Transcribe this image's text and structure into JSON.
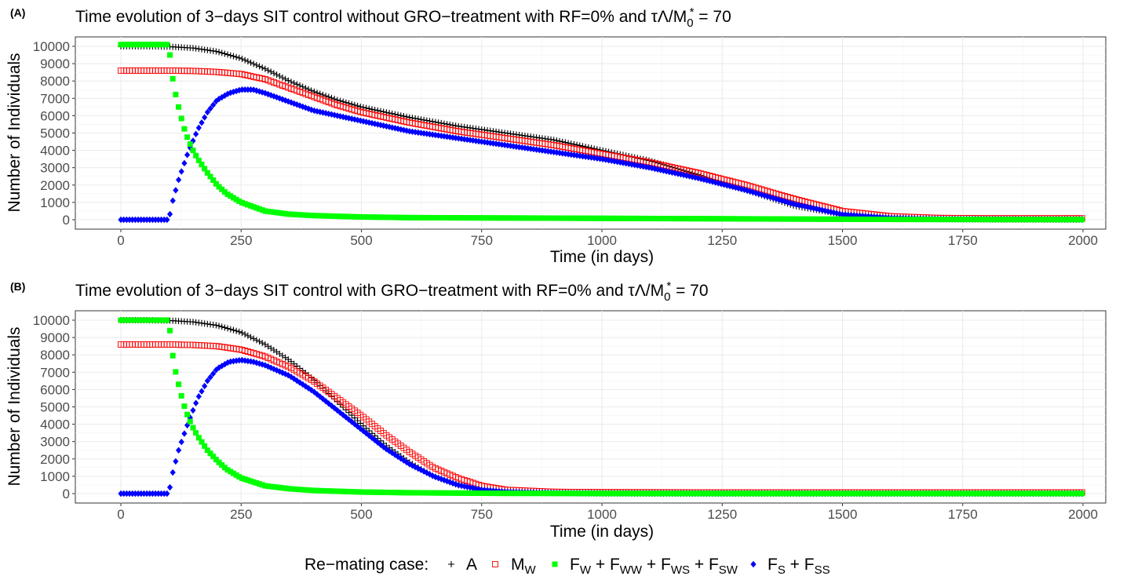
{
  "legend": {
    "title": "Re−mating case:",
    "items": [
      {
        "label": "A",
        "marker": "plus",
        "color": "#000000"
      },
      {
        "label": "M",
        "sub": "W",
        "marker": "open-square",
        "color": "#FF0000"
      },
      {
        "label_parts": [
          [
            "F",
            "W"
          ],
          [
            "F",
            "WW"
          ],
          [
            "F",
            "WS"
          ],
          [
            "F",
            "SW"
          ]
        ],
        "marker": "filled-square",
        "color": "#00FF00"
      },
      {
        "label_parts": [
          [
            "F",
            "S"
          ],
          [
            "F",
            "SS"
          ]
        ],
        "marker": "diamond",
        "color": "#0000FF"
      }
    ]
  },
  "panels": [
    {
      "tag": "(A)",
      "title_text": "Time evolution of 3−days SIT control without GRO−treatment with RF=0% and ",
      "title_math": "τΛ/M",
      "title_math_sub": "0",
      "title_math_sup": "*",
      "title_math_tail": " = 70"
    },
    {
      "tag": "(B)",
      "title_text": "Time evolution of 3−days SIT control with GRO−treatment with RF=0% and ",
      "title_math": "τΛ/M",
      "title_math_sub": "0",
      "title_math_sup": "*",
      "title_math_tail": " = 70"
    }
  ],
  "chart_data": [
    {
      "type": "scatter",
      "xlabel": "Time (in days)",
      "ylabel": "Number of Individuals",
      "xlim": [
        0,
        2000
      ],
      "ylim": [
        0,
        10000
      ],
      "x_ticks": [
        0,
        250,
        500,
        750,
        1000,
        1250,
        1500,
        1750,
        2000
      ],
      "y_ticks": [
        0,
        1000,
        2000,
        3000,
        4000,
        5000,
        6000,
        7000,
        8000,
        9000,
        10000
      ],
      "grid": true,
      "series": [
        {
          "name": "A",
          "color": "#000000",
          "marker": "plus",
          "x": [
            0,
            50,
            100,
            150,
            200,
            250,
            300,
            350,
            400,
            450,
            500,
            600,
            700,
            800,
            900,
            1000,
            1100,
            1200,
            1300,
            1400,
            1500,
            1600,
            1700,
            1800,
            2000
          ],
          "y": [
            10000,
            10000,
            9980,
            9900,
            9700,
            9300,
            8700,
            8000,
            7400,
            6900,
            6500,
            5900,
            5400,
            5000,
            4600,
            4000,
            3400,
            2600,
            1700,
            800,
            300,
            100,
            40,
            20,
            10
          ]
        },
        {
          "name": "M_W",
          "color": "#FF0000",
          "marker": "open-square",
          "x": [
            0,
            50,
            100,
            150,
            200,
            250,
            300,
            350,
            400,
            450,
            500,
            600,
            700,
            800,
            900,
            1000,
            1100,
            1200,
            1300,
            1400,
            1500,
            1600,
            1700,
            1800,
            2000
          ],
          "y": [
            8600,
            8600,
            8600,
            8580,
            8520,
            8400,
            8100,
            7600,
            7100,
            6600,
            6200,
            5600,
            5100,
            4700,
            4300,
            3800,
            3300,
            2700,
            2000,
            1200,
            500,
            200,
            100,
            80,
            80
          ]
        },
        {
          "name": "F_W+F_WW+F_WS+F_SW",
          "color": "#00FF00",
          "marker": "filled-square",
          "x": [
            0,
            50,
            100,
            103,
            110,
            120,
            130,
            140,
            150,
            160,
            180,
            200,
            220,
            250,
            300,
            350,
            400,
            500,
            600,
            800,
            1000,
            1200,
            1400,
            1600,
            2000
          ],
          "y": [
            10100,
            10100,
            10100,
            9200,
            7700,
            6500,
            5400,
            4600,
            4000,
            3500,
            2700,
            2000,
            1500,
            1000,
            500,
            320,
            240,
            160,
            120,
            100,
            80,
            60,
            40,
            20,
            10
          ]
        },
        {
          "name": "F_S+F_SS",
          "color": "#0000FF",
          "marker": "diamond",
          "x": [
            0,
            50,
            100,
            105,
            120,
            140,
            160,
            180,
            200,
            225,
            250,
            275,
            300,
            350,
            400,
            500,
            600,
            700,
            800,
            900,
            1000,
            1100,
            1200,
            1300,
            1400,
            1500,
            1600,
            1700,
            2000
          ],
          "y": [
            0,
            0,
            0,
            800,
            2300,
            3900,
            5200,
            6200,
            6900,
            7300,
            7500,
            7500,
            7300,
            6800,
            6300,
            5700,
            5100,
            4700,
            4300,
            3900,
            3500,
            3000,
            2400,
            1700,
            900,
            300,
            100,
            40,
            20
          ]
        }
      ]
    },
    {
      "type": "scatter",
      "xlabel": "Time (in days)",
      "ylabel": "Number of Individuals",
      "xlim": [
        0,
        2000
      ],
      "ylim": [
        0,
        10000
      ],
      "x_ticks": [
        0,
        250,
        500,
        750,
        1000,
        1250,
        1500,
        1750,
        2000
      ],
      "y_ticks": [
        0,
        1000,
        2000,
        3000,
        4000,
        5000,
        6000,
        7000,
        8000,
        9000,
        10000
      ],
      "grid": true,
      "series": [
        {
          "name": "A",
          "color": "#000000",
          "marker": "plus",
          "x": [
            0,
            50,
            100,
            150,
            200,
            250,
            300,
            350,
            400,
            450,
            500,
            550,
            600,
            650,
            700,
            750,
            800,
            900,
            1000,
            1200,
            1500,
            2000
          ],
          "y": [
            10000,
            10000,
            9980,
            9900,
            9700,
            9300,
            8600,
            7700,
            6600,
            5300,
            4000,
            2800,
            1800,
            1000,
            500,
            200,
            80,
            30,
            10,
            5,
            5,
            5
          ]
        },
        {
          "name": "M_W",
          "color": "#FF0000",
          "marker": "open-square",
          "x": [
            0,
            50,
            100,
            150,
            200,
            250,
            300,
            350,
            400,
            450,
            500,
            550,
            600,
            650,
            700,
            750,
            800,
            900,
            1000,
            1200,
            1500,
            2000
          ],
          "y": [
            8600,
            8600,
            8600,
            8570,
            8500,
            8300,
            7900,
            7300,
            6500,
            5500,
            4500,
            3400,
            2400,
            1500,
            900,
            450,
            220,
            100,
            80,
            70,
            70,
            70
          ]
        },
        {
          "name": "F_W+F_WW+F_WS+F_SW",
          "color": "#00FF00",
          "marker": "filled-square",
          "x": [
            0,
            50,
            100,
            103,
            110,
            120,
            130,
            140,
            150,
            160,
            180,
            200,
            220,
            250,
            300,
            350,
            400,
            500,
            600,
            700,
            800,
            1000,
            1500,
            2000
          ],
          "y": [
            10000,
            10000,
            10000,
            9100,
            7500,
            6300,
            5200,
            4400,
            3800,
            3300,
            2500,
            1900,
            1400,
            900,
            450,
            280,
            180,
            90,
            50,
            30,
            15,
            10,
            5,
            5
          ]
        },
        {
          "name": "F_S+F_SS",
          "color": "#0000FF",
          "marker": "diamond",
          "x": [
            0,
            50,
            100,
            105,
            120,
            140,
            160,
            180,
            200,
            225,
            250,
            275,
            300,
            350,
            400,
            450,
            500,
            550,
            600,
            650,
            700,
            750,
            800,
            900,
            1000,
            1500,
            2000
          ],
          "y": [
            0,
            0,
            0,
            900,
            2500,
            4100,
            5500,
            6500,
            7200,
            7600,
            7700,
            7600,
            7400,
            6800,
            5900,
            4800,
            3700,
            2600,
            1700,
            1000,
            500,
            220,
            100,
            40,
            20,
            10,
            10
          ]
        }
      ]
    }
  ]
}
